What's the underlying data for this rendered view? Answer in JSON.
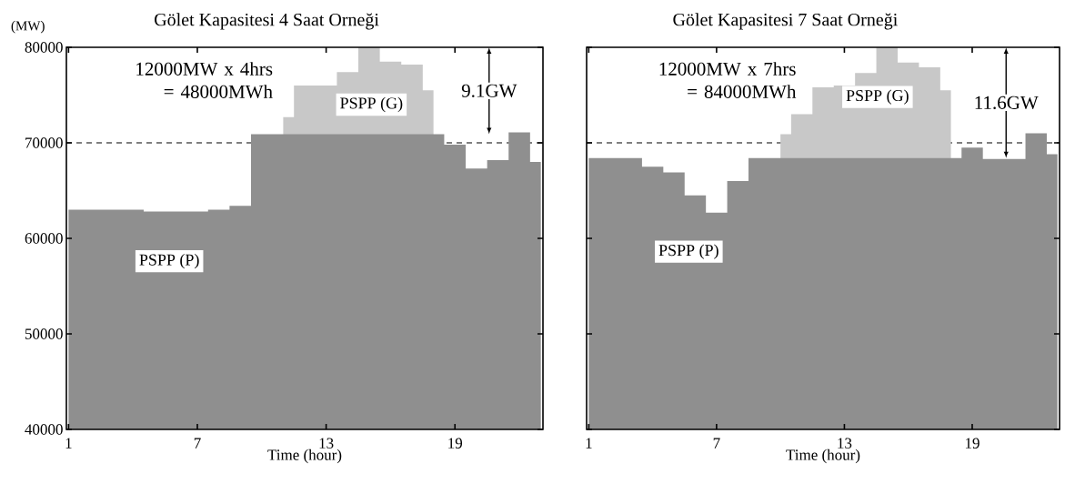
{
  "chart_data": [
    {
      "type": "area",
      "title": "Gölet Kapasitesi 4 Saat Orneği",
      "xlabel": "Time (hour)",
      "ylabel": "(MW)",
      "x": [
        1,
        2,
        3,
        4,
        5,
        6,
        7,
        8,
        9,
        10,
        11,
        12,
        13,
        14,
        15,
        16,
        17,
        18,
        19,
        20,
        21,
        22,
        23
      ],
      "series": [
        {
          "color": "#c8c8c8",
          "values": [
            null,
            null,
            null,
            null,
            null,
            null,
            null,
            null,
            null,
            null,
            72700,
            76000,
            76000,
            77400,
            80000,
            78500,
            78200,
            75500,
            null,
            null,
            null,
            null,
            null
          ]
        },
        {
          "color": "#8f8f8f",
          "values": [
            63000,
            63000,
            63000,
            63000,
            62800,
            62800,
            62800,
            63000,
            63400,
            70900,
            70900,
            70900,
            70900,
            70900,
            70900,
            70900,
            70900,
            70900,
            69800,
            67300,
            68200,
            71100,
            68000
          ]
        }
      ],
      "xlim": [
        0.9,
        23.1
      ],
      "ylim": [
        40000,
        80000
      ],
      "xticks": [
        1,
        7,
        13,
        19
      ],
      "yticks": [
        40000,
        50000,
        60000,
        70000,
        80000
      ],
      "ref_lines": [
        {
          "axis": "y",
          "value": 70000,
          "line_style": "dashed"
        }
      ],
      "annotations": [
        "12000MW x 4hrs = 48000MWh",
        "PSPP (G)",
        "PSPP (P)",
        "9.1GW"
      ]
    },
    {
      "type": "area",
      "title": "Gölet Kapasitesi 7 Saat Orneği",
      "xlabel": "Time (hour)",
      "tick_labels": "x",
      "x": [
        1,
        2,
        3,
        4,
        5,
        6,
        7,
        8,
        9,
        10,
        11,
        12,
        13,
        14,
        15,
        16,
        17,
        18,
        19,
        20,
        21,
        22,
        23
      ],
      "series": [
        {
          "color": "#c8c8c8",
          "values": [
            null,
            null,
            null,
            null,
            null,
            null,
            null,
            null,
            null,
            70900,
            73000,
            75800,
            76000,
            77300,
            80000,
            78400,
            77900,
            75500,
            null,
            null,
            null,
            null,
            null
          ]
        },
        {
          "color": "#8f8f8f",
          "values": [
            68400,
            68400,
            68400,
            67500,
            66900,
            64500,
            62700,
            66000,
            68400,
            68400,
            68400,
            68400,
            68400,
            68400,
            68400,
            68400,
            68400,
            68400,
            69500,
            68300,
            68300,
            71000,
            68800
          ]
        }
      ],
      "xlim": [
        0.9,
        23.1
      ],
      "ylim": [
        40000,
        80000
      ],
      "xticks": [
        1,
        7,
        13,
        19
      ],
      "yticks": [
        40000,
        50000,
        60000,
        70000,
        80000
      ],
      "ref_lines": [
        {
          "axis": "y",
          "value": 70000,
          "line_style": "dashed"
        }
      ],
      "annotations": [
        "12000MW x 7hrs = 84000MWh",
        "PSPP (G)",
        "PSPP (P)",
        "11.6GW"
      ]
    }
  ]
}
